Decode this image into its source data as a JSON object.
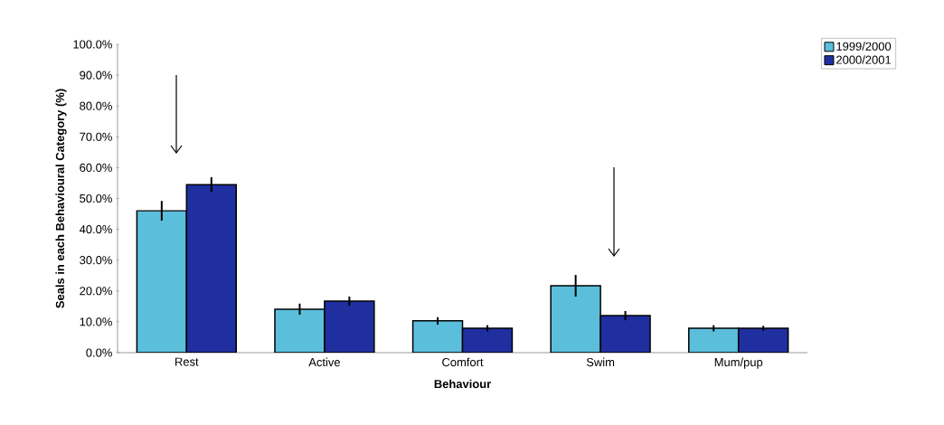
{
  "chart_data": {
    "type": "bar",
    "xlabel": "Behaviour",
    "ylabel": "Seals in each Behavioural Category (%)",
    "categories": [
      "Rest",
      "Active",
      "Comfort",
      "Swim",
      "Mum/pup"
    ],
    "series": [
      {
        "name": "1999/2000",
        "color": "#5bbfdc",
        "values": [
          46.0,
          14.1,
          10.3,
          21.7,
          7.9
        ],
        "errors": [
          3.2,
          1.8,
          1.2,
          3.5,
          1.0
        ]
      },
      {
        "name": "2000/2001",
        "color": "#1f2fa0",
        "values": [
          54.5,
          16.7,
          7.9,
          12.0,
          7.9
        ],
        "errors": [
          2.4,
          1.5,
          1.0,
          1.5,
          0.8
        ]
      }
    ],
    "ylim": [
      0,
      100
    ],
    "yticks": [
      {
        "value": 0,
        "label": "0.0%"
      },
      {
        "value": 10,
        "label": "10.0%"
      },
      {
        "value": 20,
        "label": "20.0%"
      },
      {
        "value": 30,
        "label": "30.0%"
      },
      {
        "value": 40,
        "label": "40.0%"
      },
      {
        "value": 50,
        "label": "50.0%"
      },
      {
        "value": 60,
        "label": "60.0%"
      },
      {
        "value": 70,
        "label": "70.0%"
      },
      {
        "value": 80,
        "label": "80.0%"
      },
      {
        "value": 90,
        "label": "90.0%"
      },
      {
        "value": 100,
        "label": "100.0%"
      }
    ],
    "grid": false,
    "legend": "top right"
  }
}
